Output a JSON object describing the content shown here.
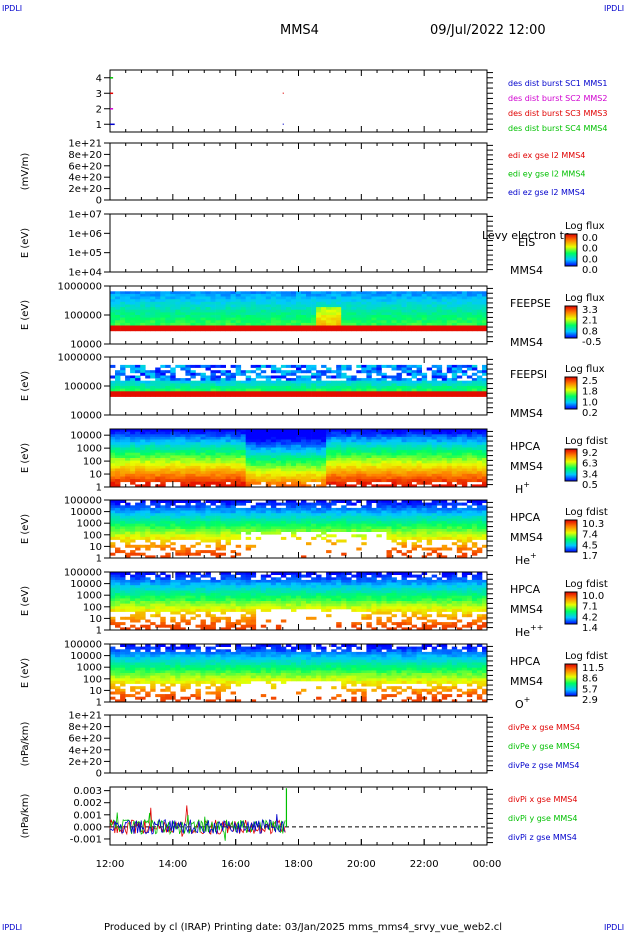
{
  "header": {
    "corner_left": "IPDLI",
    "corner_right": "IPDLI",
    "spacecraft": "MMS4",
    "datetime": "09/Jul/2022 12:00"
  },
  "footer": {
    "corner_left": "IPDLI",
    "corner_right": "IPDLI",
    "text": "Produced by cl (IRAP)   Printing date: 03/Jan/2025   mms_mms4_srvy_vue_web2.cl"
  },
  "colors": {
    "red": "#e00000",
    "green": "#00c000",
    "blue": "#0000cc",
    "magenta": "#d000d0"
  },
  "chart_data": [
    {
      "id": "burst",
      "type": "line",
      "yticks": [
        "1",
        "2",
        "3",
        "4"
      ],
      "ylim": [
        0.5,
        4.5
      ],
      "xlabel": "",
      "ylabel": "",
      "legend": [
        {
          "text": "des dist burst SC1 MMS1",
          "color": "#0000cc"
        },
        {
          "text": "des dist burst SC2 MMS2",
          "color": "#d000d0"
        },
        {
          "text": "des dist burst SC3 MMS3",
          "color": "#e00000"
        },
        {
          "text": "des dist burst SC4 MMS4",
          "color": "#00c000"
        }
      ],
      "series": [
        {
          "values": [
            [
              12.0,
              1
            ],
            [
              12.15,
              1
            ]
          ],
          "color": "#0000cc"
        },
        {
          "values": [
            [
              12.0,
              2
            ],
            [
              12.1,
              2
            ]
          ],
          "color": "#d000d0"
        },
        {
          "values": [
            [
              12.0,
              3
            ],
            [
              12.1,
              3
            ]
          ],
          "color": "#e00000"
        },
        {
          "values": [
            [
              12.0,
              4
            ],
            [
              12.1,
              4
            ]
          ],
          "color": "#00c000"
        }
      ]
    },
    {
      "id": "edi",
      "type": "line",
      "ylabel": "(mV/m)",
      "yticks": [
        "0",
        "2e+20",
        "4e+20",
        "6e+20",
        "8e+20",
        "1e+21"
      ],
      "ylim": [
        0,
        1e+21
      ],
      "zero_line": true,
      "legend": [
        {
          "text": "edi ex gse l2 MMS4",
          "color": "#e00000"
        },
        {
          "text": "edi ey gse l2 MMS4",
          "color": "#00c000"
        },
        {
          "text": "edi ez gse l2 MMS4",
          "color": "#0000cc"
        }
      ]
    },
    {
      "id": "eis",
      "type": "heatmap",
      "ylabel": "E (eV)",
      "yticks": [
        "1e+04",
        "1e+05",
        "1e+06",
        "1e+07"
      ],
      "ylim": [
        10000.0,
        10000000.0
      ],
      "instrument": "EIS",
      "overlay_text": "Levy electron to",
      "sc_label": "MMS4",
      "colorbar": {
        "title": "Log flux",
        "labels": [
          "0.0",
          "0.0",
          "0.0",
          "0.0"
        ]
      }
    },
    {
      "id": "feeps_e",
      "type": "heatmap",
      "ylabel": "E (eV)",
      "yticks": [
        "10000",
        "100000",
        "1000000"
      ],
      "ylim": [
        10000.0,
        1000000.0
      ],
      "instrument": "FEEPSE",
      "sc_label": "MMS4",
      "colorbar": {
        "title": "Log flux",
        "labels": [
          "3.3",
          "2.1",
          "0.8",
          "-0.5"
        ]
      }
    },
    {
      "id": "feeps_i",
      "type": "heatmap",
      "ylabel": "E (eV)",
      "yticks": [
        "10000",
        "100000",
        "1000000"
      ],
      "ylim": [
        10000.0,
        1000000.0
      ],
      "instrument": "FEEPSI",
      "sc_label": "MMS4",
      "colorbar": {
        "title": "Log flux",
        "labels": [
          "2.5",
          "1.8",
          "1.0",
          "0.2"
        ]
      }
    },
    {
      "id": "hpca_h",
      "type": "heatmap",
      "ylabel": "E (eV)",
      "yticks": [
        "1",
        "10",
        "100",
        "1000",
        "10000"
      ],
      "ylim": [
        1,
        30000.0
      ],
      "instrument": "HPCA",
      "sc_label": "MMS4",
      "species": "H",
      "species_sup": "+",
      "colorbar": {
        "title": "Log fdist",
        "labels": [
          "9.2",
          "6.3",
          "3.4",
          "0.5"
        ]
      }
    },
    {
      "id": "hpca_he",
      "type": "heatmap",
      "ylabel": "E (eV)",
      "yticks": [
        "1",
        "10",
        "100",
        "1000",
        "10000",
        "100000"
      ],
      "ylim": [
        1,
        100000.0
      ],
      "instrument": "HPCA",
      "sc_label": "MMS4",
      "species": "He",
      "species_sup": "+",
      "colorbar": {
        "title": "Log fdist",
        "labels": [
          "10.3",
          "7.4",
          "4.5",
          "1.7"
        ]
      }
    },
    {
      "id": "hpca_he2",
      "type": "heatmap",
      "ylabel": "E (eV)",
      "yticks": [
        "1",
        "10",
        "100",
        "1000",
        "10000",
        "100000"
      ],
      "ylim": [
        1,
        100000.0
      ],
      "instrument": "HPCA",
      "sc_label": "MMS4",
      "species": "He",
      "species_sup": "++",
      "colorbar": {
        "title": "Log fdist",
        "labels": [
          "10.0",
          "7.1",
          "4.2",
          "1.4"
        ]
      }
    },
    {
      "id": "hpca_o",
      "type": "heatmap",
      "ylabel": "E (eV)",
      "yticks": [
        "1",
        "10",
        "100",
        "1000",
        "10000",
        "100000"
      ],
      "ylim": [
        1,
        100000.0
      ],
      "instrument": "HPCA",
      "sc_label": "MMS4",
      "species": "O",
      "species_sup": "+",
      "colorbar": {
        "title": "Log fdist",
        "labels": [
          "11.5",
          "8.6",
          "5.7",
          "2.9"
        ]
      }
    },
    {
      "id": "divpe",
      "type": "line",
      "ylabel": "(nPa/km)",
      "yticks": [
        "0",
        "2e+20",
        "4e+20",
        "6e+20",
        "8e+20",
        "1e+21"
      ],
      "ylim": [
        0,
        1e+21
      ],
      "zero_line": true,
      "legend": [
        {
          "text": "divPe x gse MMS4",
          "color": "#e00000"
        },
        {
          "text": "divPe y gse MMS4",
          "color": "#00c000"
        },
        {
          "text": "divPe z gse MMS4",
          "color": "#0000cc"
        }
      ]
    },
    {
      "id": "divpi",
      "type": "line",
      "ylabel": "(nPa/km)",
      "yticks": [
        "-0.001",
        "0.000",
        "0.001",
        "0.002",
        "0.003"
      ],
      "ylim": [
        -0.0015,
        0.0033
      ],
      "zero_line": true,
      "data_end_hour": 17.6,
      "legend": [
        {
          "text": "divPi x gse MMS4",
          "color": "#e00000"
        },
        {
          "text": "divPi y gse MMS4",
          "color": "#00c000"
        },
        {
          "text": "divPi z gse MMS4",
          "color": "#0000cc"
        }
      ]
    }
  ],
  "xaxis": {
    "xlim": [
      12,
      24
    ],
    "ticks": [
      {
        "hour": 12,
        "label": "12:00"
      },
      {
        "hour": 14,
        "label": "14:00"
      },
      {
        "hour": 16,
        "label": "16:00"
      },
      {
        "hour": 18,
        "label": "18:00"
      },
      {
        "hour": 20,
        "label": "20:00"
      },
      {
        "hour": 22,
        "label": "22:00"
      },
      {
        "hour": 24,
        "label": "00:00"
      }
    ]
  }
}
